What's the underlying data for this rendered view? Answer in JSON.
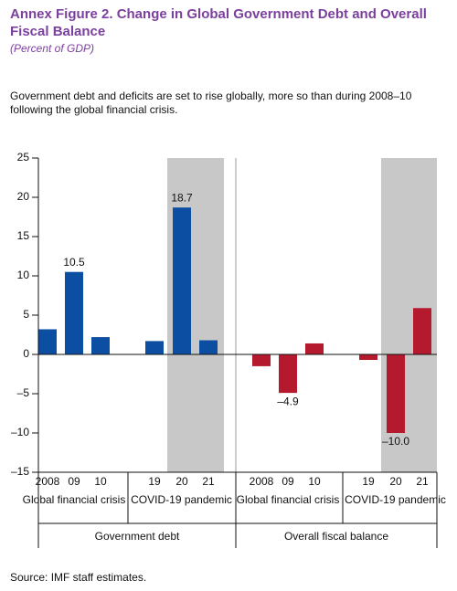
{
  "chart_data": {
    "type": "bar",
    "title": "Annex Figure 2. Change in Global Government Debt and Overall Fiscal Balance",
    "subtitle": "(Percent of GDP)",
    "description": "Government debt and deficits are set to rise globally, more so than during 2008–10 following the global financial crisis.",
    "source": "Source: IMF staff estimates.",
    "categories": [
      "2008",
      "09",
      "10",
      "19",
      "20",
      "21"
    ],
    "groups": [
      "Global financial crisis",
      "COVID-19 pandemic"
    ],
    "series": [
      {
        "name": "Government debt",
        "color": "#0b4ea2",
        "values": [
          3.2,
          10.5,
          2.2,
          1.7,
          18.7,
          1.8
        ],
        "value_labels": [
          null,
          "10.5",
          null,
          null,
          "18.7",
          null
        ]
      },
      {
        "name": "Overall fiscal balance",
        "color": "#b5192e",
        "values": [
          -1.5,
          -4.9,
          1.4,
          -0.7,
          -10.0,
          5.9
        ],
        "value_labels": [
          null,
          "–4.9",
          null,
          null,
          "–10.0",
          null
        ]
      }
    ],
    "ylim": [
      -15,
      25
    ],
    "yticks": [
      {
        "value": -15,
        "label": "–15"
      },
      {
        "value": -10,
        "label": "–10"
      },
      {
        "value": -5,
        "label": "–5"
      },
      0,
      5,
      10,
      15,
      20,
      25
    ]
  }
}
